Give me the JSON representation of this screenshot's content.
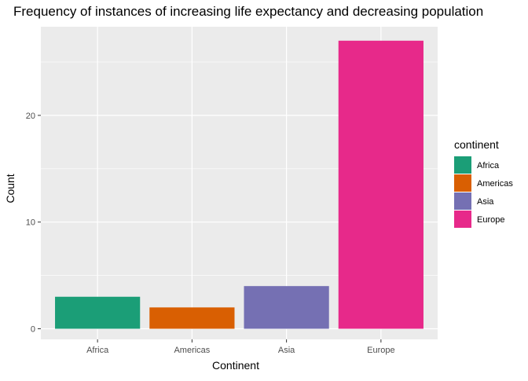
{
  "chart_data": {
    "type": "bar",
    "title": "Frequency of instances of increasing life expectancy and decreasing population",
    "xlabel": "Continent",
    "ylabel": "Count",
    "categories": [
      "Africa",
      "Americas",
      "Asia",
      "Europe"
    ],
    "values": [
      3,
      2,
      4,
      27
    ],
    "colors": [
      "#1B9E77",
      "#D95F02",
      "#7570B3",
      "#E7298A"
    ],
    "ylim": [
      0,
      28.2
    ],
    "yticks": [
      0,
      10,
      20
    ],
    "grid": true,
    "panel_background": "#EBEBEB",
    "legend": {
      "title": "continent",
      "position": "right",
      "entries": [
        "Africa",
        "Americas",
        "Asia",
        "Europe"
      ]
    }
  }
}
